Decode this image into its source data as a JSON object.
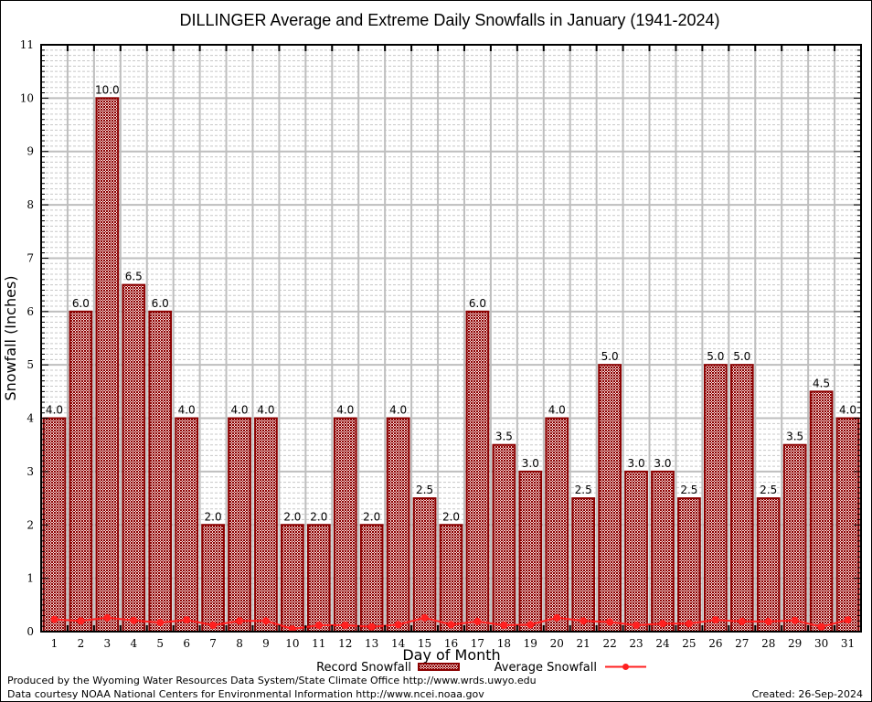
{
  "chart_data": {
    "type": "bar",
    "title": "DILLINGER Average and Extreme Daily Snowfalls in January (1941-2024)",
    "xlabel": "Day of Month",
    "ylabel": "Snowfall (Inches)",
    "ylim": [
      0,
      11
    ],
    "yticks": [
      "0",
      "1",
      "2",
      "3",
      "4",
      "5",
      "6",
      "7",
      "8",
      "9",
      "10",
      "11"
    ],
    "categories": [
      "1",
      "2",
      "3",
      "4",
      "5",
      "6",
      "7",
      "8",
      "9",
      "10",
      "11",
      "12",
      "13",
      "14",
      "15",
      "16",
      "17",
      "18",
      "19",
      "20",
      "21",
      "22",
      "23",
      "24",
      "25",
      "26",
      "27",
      "28",
      "29",
      "30",
      "31"
    ],
    "grid": true,
    "legend_position": "bottom",
    "series": [
      {
        "name": "Record Snowfall",
        "kind": "bar",
        "color": "#8b0000",
        "values": [
          4.0,
          6.0,
          10.0,
          6.5,
          6.0,
          4.0,
          2.0,
          4.0,
          4.0,
          2.0,
          2.0,
          4.0,
          2.0,
          4.0,
          2.5,
          2.0,
          6.0,
          3.5,
          3.0,
          4.0,
          2.5,
          5.0,
          3.0,
          3.0,
          2.5,
          5.0,
          5.0,
          2.5,
          3.5,
          4.5,
          4.0
        ],
        "labels": [
          "4.0",
          "6.0",
          "10.0",
          "6.5",
          "6.0",
          "4.0",
          "2.0",
          "4.0",
          "4.0",
          "2.0",
          "2.0",
          "4.0",
          "2.0",
          "4.0",
          "2.5",
          "2.0",
          "6.0",
          "3.5",
          "3.0",
          "4.0",
          "2.5",
          "5.0",
          "3.0",
          "3.0",
          "2.5",
          "5.0",
          "5.0",
          "2.5",
          "3.5",
          "4.5",
          "4.0"
        ]
      },
      {
        "name": "Average Snowfall",
        "kind": "line",
        "color": "#ff2020",
        "values": [
          0.23,
          0.2,
          0.26,
          0.21,
          0.17,
          0.22,
          0.12,
          0.2,
          0.2,
          0.05,
          0.12,
          0.12,
          0.09,
          0.13,
          0.26,
          0.13,
          0.19,
          0.12,
          0.13,
          0.26,
          0.2,
          0.18,
          0.12,
          0.15,
          0.15,
          0.22,
          0.19,
          0.19,
          0.21,
          0.09,
          0.22
        ]
      }
    ]
  },
  "footer": {
    "produced_by": "Produced by the Wyoming Water Resources Data System/State Climate Office http://www.wrds.uwyo.edu",
    "data_courtesy": "Data courtesy NOAA National Centers for Environmental Information http://www.ncei.noaa.gov",
    "created": "Created:  26-Sep-2024"
  },
  "colors": {
    "bar_stroke": "#8b0000",
    "bar_fill_light": "#f2d0d0",
    "line": "#ff2020",
    "grid_major": "#bebebe",
    "grid_minor": "#c8c8c8"
  }
}
